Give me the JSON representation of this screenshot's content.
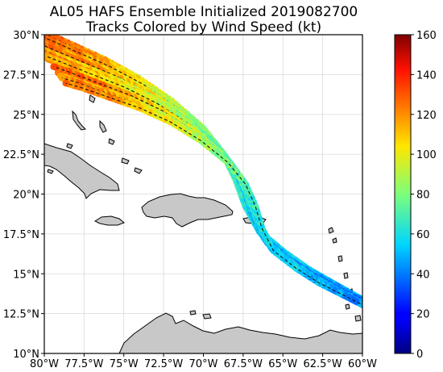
{
  "title": {
    "line1": "AL05 HAFS Ensemble Initialized 2019082700",
    "line2": "Tracks Colored by Wind Speed (kt)"
  },
  "map": {
    "lon_range": [
      -80,
      -60
    ],
    "lat_range": [
      10,
      30
    ],
    "x_tick_labels": [
      "80°W",
      "77.5°W",
      "75°W",
      "72.5°W",
      "70°W",
      "67.5°W",
      "65°W",
      "62.5°W",
      "60°W"
    ],
    "y_tick_labels": [
      "10°N",
      "12.5°N",
      "15°N",
      "17.5°N",
      "20°N",
      "22.5°N",
      "25°N",
      "27.5°N",
      "30°N"
    ],
    "grid": true,
    "land_color": "#c8c8c8",
    "ocean_color": "#ffffff"
  },
  "colorbar": {
    "min": 0,
    "max": 160,
    "tick_labels": [
      "0",
      "20",
      "40",
      "60",
      "80",
      "100",
      "120",
      "140",
      "160"
    ],
    "colormap": "jet"
  },
  "chart_data": {
    "type": "scatter",
    "xlabel": "",
    "ylabel": "",
    "xlim": [
      -80,
      -60
    ],
    "ylim": [
      10,
      30
    ],
    "mean_track": [
      {
        "lon": -60.0,
        "lat": 13.2,
        "wind": 40
      },
      {
        "lon": -61.5,
        "lat": 14.0,
        "wind": 40
      },
      {
        "lon": -63.0,
        "lat": 14.8,
        "wind": 45
      },
      {
        "lon": -64.5,
        "lat": 15.8,
        "wind": 50
      },
      {
        "lon": -66.0,
        "lat": 17.0,
        "wind": 50
      },
      {
        "lon": -66.8,
        "lat": 18.5,
        "wind": 55
      },
      {
        "lon": -67.3,
        "lat": 20.0,
        "wind": 60
      },
      {
        "lon": -68.0,
        "lat": 21.5,
        "wind": 65
      },
      {
        "lon": -69.2,
        "lat": 23.0,
        "wind": 75
      },
      {
        "lon": -71.0,
        "lat": 24.5,
        "wind": 85
      },
      {
        "lon": -73.0,
        "lat": 25.8,
        "wind": 95
      },
      {
        "lon": -75.0,
        "lat": 26.8,
        "wind": 105
      },
      {
        "lon": -77.0,
        "lat": 27.6,
        "wind": 115
      },
      {
        "lon": -79.0,
        "lat": 28.4,
        "wind": 120
      },
      {
        "lon": -80.0,
        "lat": 28.8,
        "wind": 120
      }
    ],
    "ensemble_members": 20,
    "spread_deg": [
      0.3,
      2.2
    ]
  }
}
